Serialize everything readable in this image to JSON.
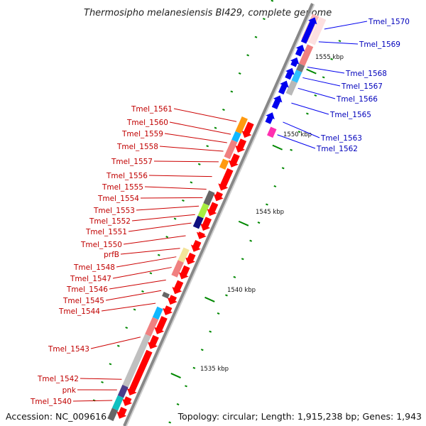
{
  "title": "Thermosipho melanesiensis BI429, complete genome",
  "footer": {
    "accession": "Accession: NC_009616",
    "topology": "Topology: circular; Length: 1,915,238 bp; Genes: 1,943"
  },
  "colors": {
    "forward": "#ff0000",
    "reverse": "#0000ee",
    "backbone": "#888888",
    "tick": "#008800"
  },
  "ticks": [
    {
      "label": "1555 kbp"
    },
    {
      "label": "1550 kbp"
    },
    {
      "label": "1545 kbp"
    },
    {
      "label": "1540 kbp"
    },
    {
      "label": "1535 kbp"
    }
  ],
  "reverse_labels": [
    {
      "name": "Tmel_1570"
    },
    {
      "name": "Tmel_1569"
    },
    {
      "name": "Tmel_1568"
    },
    {
      "name": "Tmel_1567"
    },
    {
      "name": "Tmel_1566"
    },
    {
      "name": "Tmel_1565"
    },
    {
      "name": "Tmel_1563"
    },
    {
      "name": "Tmel_1562"
    }
  ],
  "forward_labels": [
    {
      "name": "Tmel_1561"
    },
    {
      "name": "Tmel_1560"
    },
    {
      "name": "Tmel_1559"
    },
    {
      "name": "Tmel_1558"
    },
    {
      "name": "Tmel_1557"
    },
    {
      "name": "Tmel_1556"
    },
    {
      "name": "Tmel_1555"
    },
    {
      "name": "Tmel_1554"
    },
    {
      "name": "Tmel_1553"
    },
    {
      "name": "Tmel_1552"
    },
    {
      "name": "Tmel_1551"
    },
    {
      "name": "Tmel_1550"
    },
    {
      "name": "prfB"
    },
    {
      "name": "Tmel_1548"
    },
    {
      "name": "Tmel_1547"
    },
    {
      "name": "Tmel_1546"
    },
    {
      "name": "Tmel_1545"
    },
    {
      "name": "Tmel_1544"
    },
    {
      "name": "Tmel_1543"
    },
    {
      "name": "Tmel_1542"
    },
    {
      "name": "pnk"
    },
    {
      "name": "Tmel_1540"
    }
  ]
}
